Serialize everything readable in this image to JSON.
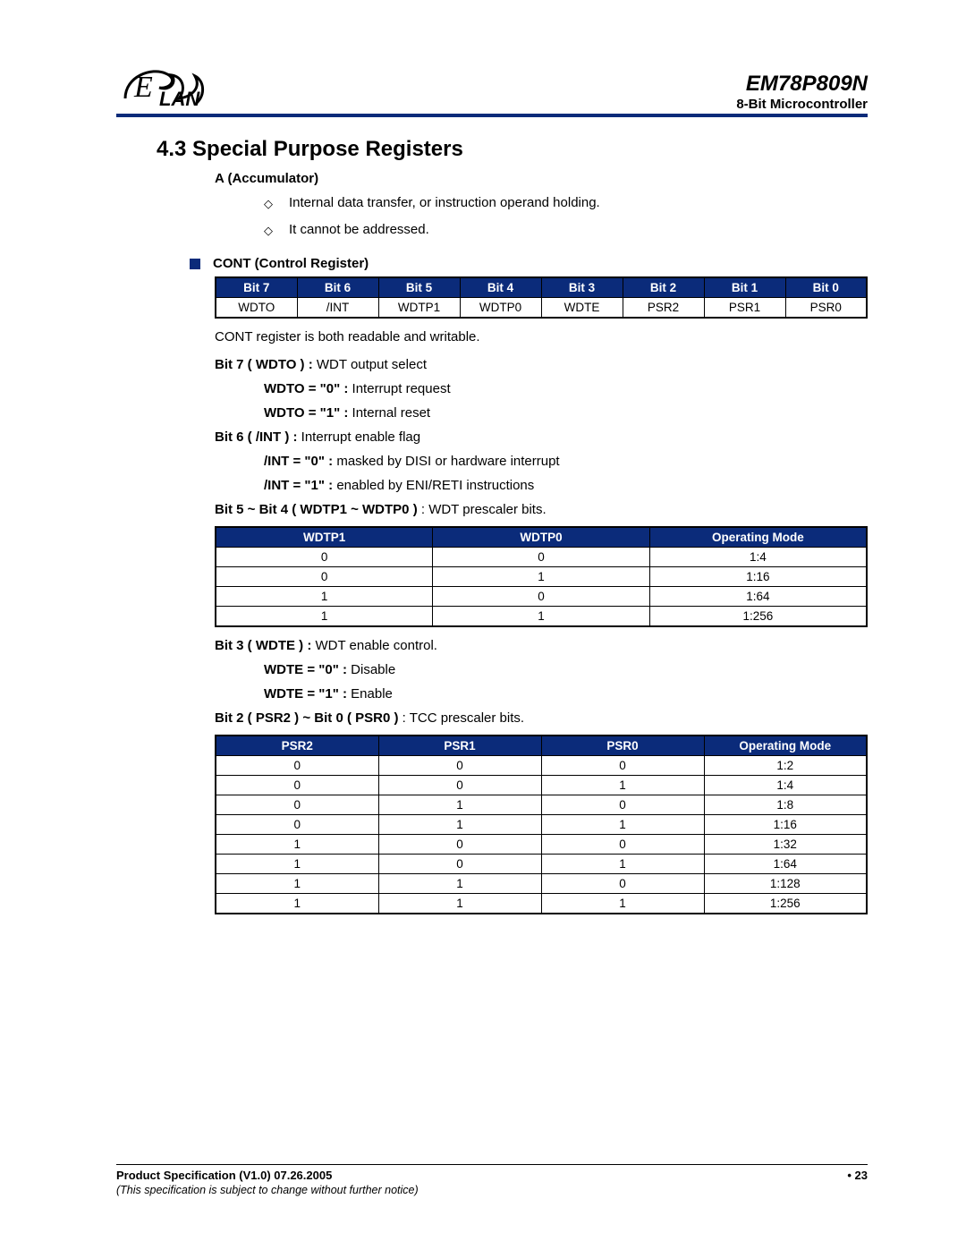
{
  "header": {
    "product": "EM78P809N",
    "subtitle": "8-Bit Microcontroller",
    "logo_text": "LAN",
    "logo_script": "E",
    "logo_color": "#0b2b7a"
  },
  "section": {
    "number_title": "4.3  Special Purpose Registers"
  },
  "accumulator": {
    "heading": "A    (Accumulator)",
    "bullets": [
      "Internal data transfer, or instruction operand holding.",
      "It cannot be addressed."
    ]
  },
  "cont": {
    "square_label": "CONT (Control Register)",
    "bit_headers": [
      "Bit 7",
      "Bit 6",
      "Bit 5",
      "Bit 4",
      "Bit 3",
      "Bit 2",
      "Bit 1",
      "Bit 0"
    ],
    "bit_values": [
      "WDTO",
      "/INT",
      "WDTP1",
      "WDTP0",
      "WDTE",
      "PSR2",
      "PSR1",
      "PSR0"
    ],
    "note": "CONT register is both readable and writable.",
    "bit7": {
      "label_bold": "Bit 7 ( WDTO ) : ",
      "label_rest": "WDT output select",
      "v0_bold": "WDTO = \"0\" : ",
      "v0_rest": "Interrupt request",
      "v1_bold": "WDTO = \"1\" : ",
      "v1_rest": "Internal reset"
    },
    "bit6": {
      "label_bold": "Bit 6 ( /INT ) : ",
      "label_rest": "Interrupt enable flag",
      "v0_bold": "/INT = \"0\" : ",
      "v0_rest": "masked by DISI or hardware interrupt",
      "v1_bold": "/INT = \"1\" : ",
      "v1_rest": "enabled by ENI/RETI instructions"
    },
    "bit54": {
      "label_bold": "Bit 5 ~ Bit 4 ( WDTP1 ~ WDTP0 ) ",
      "label_rest": ": WDT prescaler bits.",
      "headers": [
        "WDTP1",
        "WDTP0",
        "Operating Mode"
      ],
      "rows": [
        [
          "0",
          "0",
          "1:4"
        ],
        [
          "0",
          "1",
          "1:16"
        ],
        [
          "1",
          "0",
          "1:64"
        ],
        [
          "1",
          "1",
          "1:256"
        ]
      ]
    },
    "bit3": {
      "label_bold": "Bit 3 ( WDTE ) : ",
      "label_rest": "WDT enable control.",
      "v0_bold": "WDTE = \"0\" : ",
      "v0_rest": "Disable",
      "v1_bold": "WDTE = \"1\" : ",
      "v1_rest": "Enable"
    },
    "bit20": {
      "label_bold": "Bit 2 ( PSR2 ) ~ Bit 0 ( PSR0 ) ",
      "label_rest": ": TCC prescaler bits.",
      "headers": [
        "PSR2",
        "PSR1",
        "PSR0",
        "Operating Mode"
      ],
      "rows": [
        [
          "0",
          "0",
          "0",
          "1:2"
        ],
        [
          "0",
          "0",
          "1",
          "1:4"
        ],
        [
          "0",
          "1",
          "0",
          "1:8"
        ],
        [
          "0",
          "1",
          "1",
          "1:16"
        ],
        [
          "1",
          "0",
          "0",
          "1:32"
        ],
        [
          "1",
          "0",
          "1",
          "1:64"
        ],
        [
          "1",
          "1",
          "0",
          "1:128"
        ],
        [
          "1",
          "1",
          "1",
          "1:256"
        ]
      ]
    }
  },
  "footer": {
    "left": "Product Specification (V1.0) 07.26.2005",
    "right": "• 23",
    "note": "(This specification is subject to change without further notice)"
  },
  "colors": {
    "header_rule": "#0b2b7a",
    "table_header_bg": "#0b2b7a",
    "table_header_fg": "#ffffff",
    "text": "#000000",
    "background": "#ffffff"
  }
}
